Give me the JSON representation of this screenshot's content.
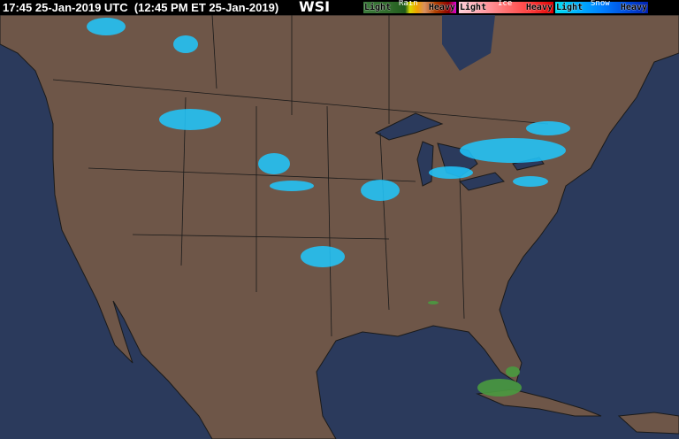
{
  "header": {
    "timestamp": "17:45 25-Jan-2019 UTC  (12:45 PM ET 25-Jan-2019)",
    "logo": "WSI"
  },
  "legend": {
    "rain": {
      "label": "Rain",
      "light": "Light",
      "heavy": "Heavy",
      "colors": [
        "#3c7a3c",
        "#2f6a2a",
        "#1f5a1a",
        "#d8d800",
        "#f0a000",
        "#d89060",
        "#b04000",
        "#900000",
        "#e000e0"
      ]
    },
    "ice": {
      "label": "Ice",
      "light": "Light",
      "heavy": "Heavy",
      "colors": [
        "#ffd0d8",
        "#ffa0a8",
        "#ff7070",
        "#ff4040",
        "#e00000"
      ]
    },
    "snow": {
      "label": "Snow",
      "light": "Light",
      "heavy": "Heavy",
      "colors": [
        "#00e0f0",
        "#00b0ff",
        "#0080ff",
        "#0050e0",
        "#0020b0"
      ]
    }
  },
  "map": {
    "land_color": "#6e5648",
    "water_color": "#2b3a5c",
    "border_color": "#1a1a1a"
  }
}
